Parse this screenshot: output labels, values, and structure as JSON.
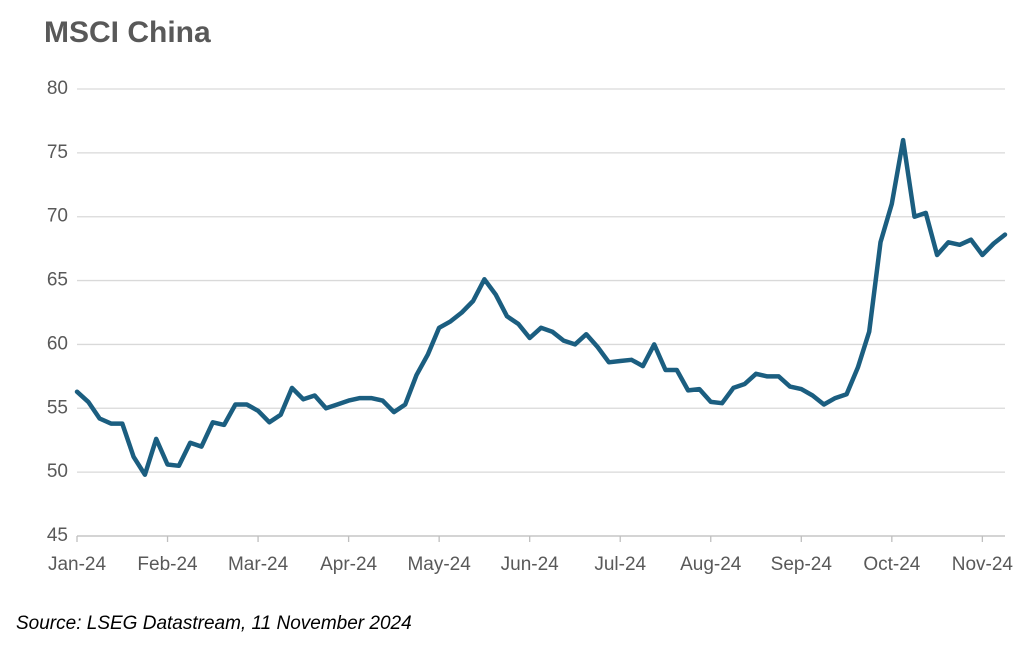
{
  "chart_data": {
    "type": "line",
    "title": "MSCI China",
    "source": "Source: LSEG Datastream, 11 November 2024",
    "categories": [
      "Jan-24",
      null,
      null,
      null,
      null,
      null,
      null,
      null,
      "Feb-24",
      null,
      null,
      null,
      null,
      null,
      null,
      null,
      "Mar-24",
      null,
      null,
      null,
      null,
      null,
      null,
      null,
      "Apr-24",
      null,
      null,
      null,
      null,
      null,
      null,
      null,
      "May-24",
      null,
      null,
      null,
      null,
      null,
      null,
      null,
      "Jun-24",
      null,
      null,
      null,
      null,
      null,
      null,
      null,
      "Jul-24",
      null,
      null,
      null,
      null,
      null,
      null,
      null,
      "Aug-24",
      null,
      null,
      null,
      null,
      null,
      null,
      null,
      "Sep-24",
      null,
      null,
      null,
      null,
      null,
      null,
      null,
      "Oct-24",
      null,
      null,
      null,
      null,
      null,
      null,
      null,
      "Nov-24",
      null,
      null
    ],
    "series": [
      {
        "name": "MSCI China",
        "color": "#1b5e80",
        "values": [
          56.3,
          55.5,
          54.2,
          53.8,
          53.8,
          51.2,
          49.8,
          52.6,
          50.6,
          50.5,
          52.3,
          52.0,
          53.9,
          53.7,
          55.3,
          55.3,
          54.8,
          53.9,
          54.5,
          56.6,
          55.7,
          56.0,
          55.0,
          55.3,
          55.6,
          55.8,
          55.8,
          55.6,
          54.7,
          55.3,
          57.6,
          59.2,
          61.3,
          61.8,
          62.5,
          63.4,
          65.1,
          63.9,
          62.2,
          61.6,
          60.5,
          61.3,
          61.0,
          60.3,
          60.0,
          60.8,
          59.8,
          58.6,
          58.7,
          58.8,
          58.3,
          60.0,
          58.0,
          58.0,
          56.4,
          56.5,
          55.5,
          55.4,
          56.6,
          56.9,
          57.7,
          57.5,
          57.5,
          56.7,
          56.5,
          56.0,
          55.3,
          55.8,
          56.1,
          58.2,
          61.0,
          68.0,
          71.0,
          76.0,
          70.0,
          70.3,
          67.0,
          68.0,
          67.8,
          68.2,
          67.0,
          67.9,
          68.6
        ]
      }
    ],
    "ylim": [
      45,
      80
    ],
    "yticks": [
      45,
      50,
      55,
      60,
      65,
      70,
      75,
      80
    ],
    "grid": true
  }
}
